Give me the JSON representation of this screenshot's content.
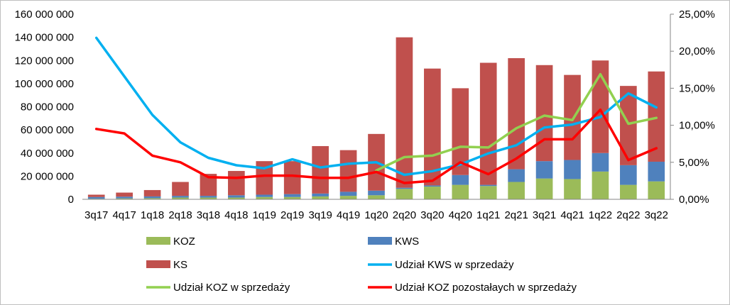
{
  "chart_data": {
    "type": "bar",
    "stacked": true,
    "categories": [
      "3q17",
      "4q17",
      "1q18",
      "2q18",
      "3q18",
      "4q18",
      "1q19",
      "2q19",
      "3q19",
      "4q19",
      "1q20",
      "2q20",
      "3q20",
      "4q20",
      "1q21",
      "2q21",
      "3q21",
      "4q21",
      "1q22",
      "2q22",
      "3q22"
    ],
    "y_left": {
      "min": 0,
      "max": 160000000,
      "step": 20000000,
      "tick_labels": [
        "0",
        "20 000 000",
        "40 000 000",
        "60 000 000",
        "80 000 000",
        "100 000 000",
        "120 000 000",
        "140 000 000",
        "160 000 000"
      ]
    },
    "y_right": {
      "min": 0,
      "max": 25,
      "step": 5,
      "tick_labels": [
        "0,00%",
        "5,00%",
        "10,00%",
        "15,00%",
        "20,00%",
        "25,00%"
      ]
    },
    "bar_series": [
      {
        "name": "KOZ",
        "color": "#9bbb59",
        "values": [
          500000,
          800000,
          1000000,
          1500000,
          1500000,
          1500000,
          2000000,
          2000000,
          2500000,
          3000000,
          3500000,
          9000000,
          11000000,
          12500000,
          11500000,
          15000000,
          18000000,
          17500000,
          24000000,
          12500000,
          15500000
        ]
      },
      {
        "name": "KWS",
        "color": "#4f81bd",
        "values": [
          1500000,
          1500000,
          1500000,
          1500000,
          1500000,
          2000000,
          2000000,
          2500000,
          2500000,
          3500000,
          4000000,
          1000000,
          1000000,
          8500000,
          1000000,
          11000000,
          15000000,
          16500000,
          16000000,
          17000000,
          17000000
        ]
      },
      {
        "name": "KS",
        "color": "#c0504d",
        "values": [
          2000000,
          3500000,
          5500000,
          12000000,
          19000000,
          21000000,
          29000000,
          28500000,
          41000000,
          36000000,
          49000000,
          130000000,
          101000000,
          75000000,
          105500000,
          96000000,
          83000000,
          73500000,
          80000000,
          68500000,
          78000000
        ]
      }
    ],
    "line_series": [
      {
        "name": "Udział KWS w sprzedaży",
        "color": "#00b0f0",
        "values": [
          21.8,
          16.6,
          11.4,
          7.7,
          5.6,
          4.6,
          4.2,
          5.4,
          4.3,
          4.8,
          5.0,
          3.3,
          3.8,
          4.7,
          6.2,
          7.3,
          9.7,
          10.1,
          11.1,
          14.3,
          12.4
        ]
      },
      {
        "name": "Udział KOZ w sprzedaży",
        "color": "#92d050",
        "values": [
          null,
          null,
          null,
          null,
          null,
          null,
          null,
          null,
          null,
          null,
          3.9,
          5.7,
          5.9,
          7.1,
          7.0,
          9.6,
          11.3,
          10.7,
          16.9,
          10.2,
          11.0
        ]
      },
      {
        "name": "Udział KOZ pozostałaych w sprzedaży",
        "color": "#ff0000",
        "values": [
          9.5,
          8.9,
          5.9,
          5.0,
          3.0,
          2.9,
          3.2,
          3.2,
          2.9,
          2.9,
          3.7,
          2.2,
          2.5,
          5.0,
          3.4,
          5.5,
          8.1,
          8.1,
          12.1,
          5.3,
          6.9
        ]
      }
    ],
    "legend": [
      {
        "name": "KOZ",
        "kind": "bar",
        "color": "#9bbb59"
      },
      {
        "name": "KWS",
        "kind": "bar",
        "color": "#4f81bd"
      },
      {
        "name": "KS",
        "kind": "bar",
        "color": "#c0504d"
      },
      {
        "name": "Udział KWS w sprzedaży",
        "kind": "line",
        "color": "#00b0f0"
      },
      {
        "name": "Udział KOZ w sprzedaży",
        "kind": "line",
        "color": "#92d050"
      },
      {
        "name": "Udział KOZ pozostałaych w sprzedaży",
        "kind": "line",
        "color": "#ff0000"
      }
    ],
    "legend_position": "bottom",
    "grid": false,
    "title": "",
    "xlabel": "",
    "ylabel": ""
  }
}
